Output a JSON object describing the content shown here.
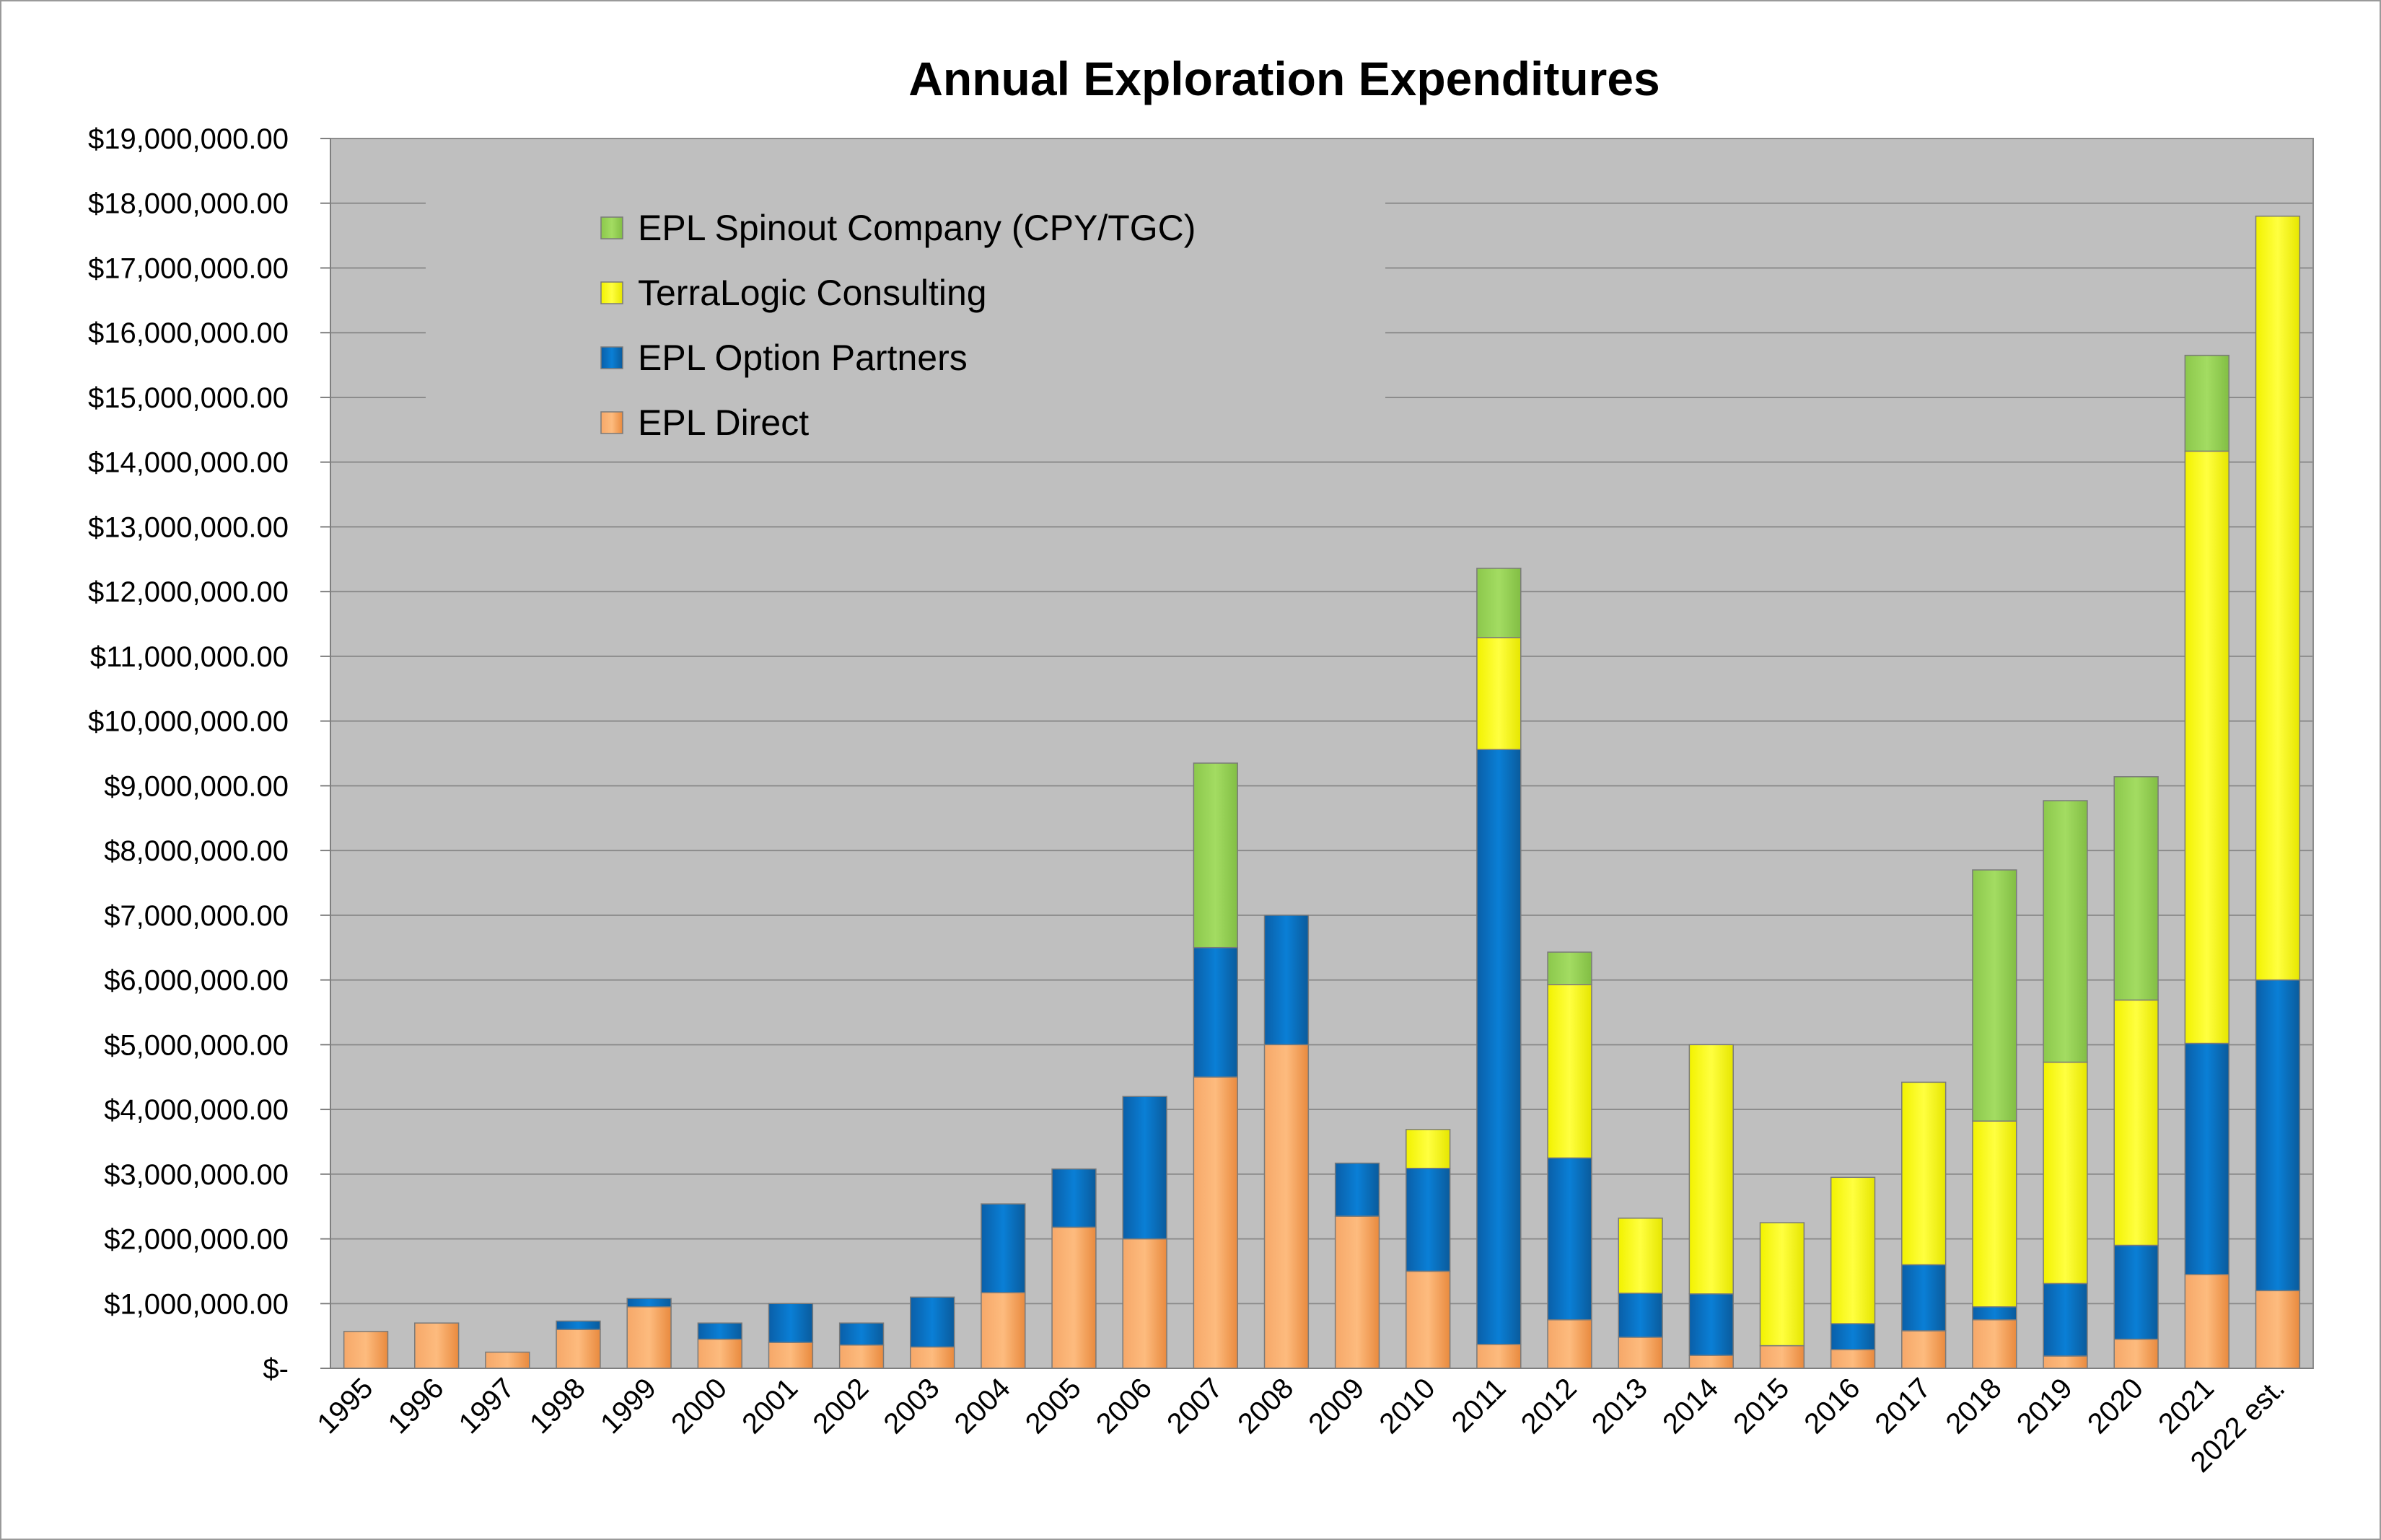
{
  "chart_data": {
    "type": "bar",
    "stacked": true,
    "title": "Annual Exploration Expenditures",
    "xlabel": "",
    "ylabel": "",
    "ylim": [
      0,
      19000000
    ],
    "y_tick_labels": [
      "$-",
      "$1,000,000.00",
      "$2,000,000.00",
      "$3,000,000.00",
      "$4,000,000.00",
      "$5,000,000.00",
      "$6,000,000.00",
      "$7,000,000.00",
      "$8,000,000.00",
      "$9,000,000.00",
      "$10,000,000.00",
      "$11,000,000.00",
      "$12,000,000.00",
      "$13,000,000.00",
      "$14,000,000.00",
      "$15,000,000.00",
      "$16,000,000.00",
      "$17,000,000.00",
      "$18,000,000.00",
      "$19,000,000.00"
    ],
    "grid": true,
    "legend_position": "top-left inside plot",
    "categories": [
      "1995",
      "1996",
      "1997",
      "1998",
      "1999",
      "2000",
      "2001",
      "2002",
      "2003",
      "2004",
      "2005",
      "2006",
      "2007",
      "2008",
      "2009",
      "2010",
      "2011",
      "2012",
      "2013",
      "2014",
      "2015",
      "2016",
      "2017",
      "2018",
      "2019",
      "2020",
      "2021",
      "2022 est."
    ],
    "series": [
      {
        "name": "EPL Direct",
        "color": "#f79646",
        "values": [
          570000,
          700000,
          250000,
          600000,
          950000,
          450000,
          400000,
          360000,
          330000,
          1170000,
          2180000,
          2000000,
          4500000,
          5000000,
          2350000,
          1500000,
          370000,
          750000,
          480000,
          200000,
          350000,
          290000,
          580000,
          750000,
          190000,
          450000,
          1450000,
          1200000
        ]
      },
      {
        "name": "EPL Option Partners",
        "color": "#0070c0",
        "values": [
          0,
          0,
          0,
          130000,
          130000,
          250000,
          600000,
          340000,
          770000,
          1370000,
          900000,
          2200000,
          2000000,
          2000000,
          820000,
          1590000,
          9190000,
          2500000,
          680000,
          950000,
          0,
          400000,
          1020000,
          200000,
          1120000,
          1450000,
          3570000,
          4800000
        ]
      },
      {
        "name": "TerraLogic Consulting",
        "color": "#ffff00",
        "values": [
          0,
          0,
          0,
          0,
          0,
          0,
          0,
          0,
          0,
          0,
          0,
          0,
          0,
          0,
          0,
          600000,
          1730000,
          2680000,
          1160000,
          3850000,
          1900000,
          2260000,
          2820000,
          2870000,
          3420000,
          3790000,
          9150000,
          11800000
        ]
      },
      {
        "name": "EPL Spinout Company (CPY/TGC)",
        "color": "#92d050",
        "values": [
          0,
          0,
          0,
          0,
          0,
          0,
          0,
          0,
          0,
          0,
          0,
          0,
          2850000,
          0,
          0,
          0,
          1070000,
          500000,
          0,
          0,
          0,
          0,
          0,
          3880000,
          4040000,
          3450000,
          1480000,
          0
        ]
      }
    ],
    "legend_order": [
      "EPL Spinout Company (CPY/TGC)",
      "TerraLogic Consulting",
      "EPL Option Partners",
      "EPL Direct"
    ]
  },
  "colors": {
    "plot_background": "#bfbfbf",
    "gridline": "#8c8c8c"
  }
}
